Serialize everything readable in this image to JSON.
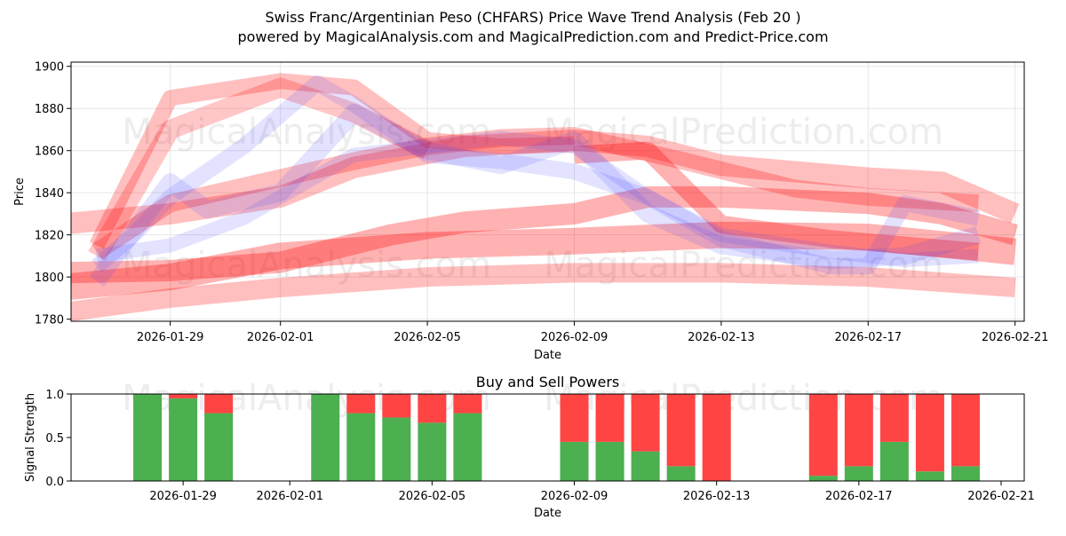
{
  "title_line1": "Swiss Franc/Argentinian Peso (CHFARS) Price Wave Trend Analysis (Feb 20 )",
  "title_line2": "powered by MagicalAnalysis.com and MagicalPrediction.com and Predict-Price.com",
  "watermarks": [
    "MagicalAnalysis.com",
    "MagicalPrediction.com"
  ],
  "colors": {
    "red": "#ff0000",
    "blue": "#4040ff",
    "buy": "#4caf50",
    "sell": "#ff4444"
  },
  "chart_data": [
    {
      "type": "line",
      "name": "price-wave-chart",
      "xlabel": "Date",
      "ylabel": "Price",
      "xlim": [
        "2026-01-26",
        "2026-02-21"
      ],
      "ylim": [
        1779,
        1902
      ],
      "x_ticks": [
        "2026-01-29",
        "2026-02-01",
        "2026-02-05",
        "2026-02-09",
        "2026-02-13",
        "2026-02-17",
        "2026-02-21"
      ],
      "y_ticks": [
        1780,
        1800,
        1820,
        1840,
        1860,
        1880,
        1900
      ],
      "grid": true,
      "series": [
        {
          "name": "red-wave-1",
          "color": "red",
          "width": 18,
          "alpha": 0.25,
          "x": [
            "2026-01-27",
            "2026-01-29",
            "2026-02-01",
            "2026-02-03",
            "2026-02-05",
            "2026-02-07",
            "2026-02-09"
          ],
          "y": [
            1815,
            1885,
            1893,
            1890,
            1865,
            1862,
            1863
          ]
        },
        {
          "name": "red-wave-2",
          "color": "red",
          "width": 22,
          "alpha": 0.22,
          "x": [
            "2026-01-27",
            "2026-01-29",
            "2026-02-01",
            "2026-02-03",
            "2026-02-05"
          ],
          "y": [
            1810,
            1870,
            1890,
            1878,
            1860
          ]
        },
        {
          "name": "red-wave-3",
          "color": "red",
          "width": 20,
          "alpha": 0.25,
          "x": [
            "2026-01-27",
            "2026-01-29",
            "2026-02-01",
            "2026-02-03",
            "2026-02-05",
            "2026-02-07",
            "2026-02-09",
            "2026-02-12",
            "2026-02-15",
            "2026-02-17",
            "2026-02-20"
          ],
          "y": [
            1812,
            1835,
            1847,
            1855,
            1862,
            1866,
            1867,
            1855,
            1842,
            1838,
            1835
          ]
        },
        {
          "name": "red-wave-4",
          "color": "red",
          "width": 24,
          "alpha": 0.25,
          "x": [
            "2026-01-26",
            "2026-01-29",
            "2026-02-01",
            "2026-02-03",
            "2026-02-06",
            "2026-02-09",
            "2026-02-11",
            "2026-02-13",
            "2026-02-17",
            "2026-02-19",
            "2026-02-21"
          ],
          "y": [
            1825,
            1830,
            1838,
            1852,
            1862,
            1865,
            1862,
            1853,
            1847,
            1845,
            1830
          ]
        },
        {
          "name": "red-wave-5",
          "color": "red",
          "width": 24,
          "alpha": 0.3,
          "x": [
            "2026-01-26",
            "2026-01-29",
            "2026-02-01",
            "2026-02-04",
            "2026-02-06",
            "2026-02-09",
            "2026-02-11",
            "2026-02-13",
            "2026-02-17",
            "2026-02-19",
            "2026-02-21"
          ],
          "y": [
            1802,
            1803,
            1807,
            1820,
            1826,
            1830,
            1838,
            1838,
            1835,
            1830,
            1820
          ]
        },
        {
          "name": "red-wave-6",
          "color": "red",
          "width": 30,
          "alpha": 0.3,
          "x": [
            "2026-01-26",
            "2026-01-29",
            "2026-02-01",
            "2026-02-05",
            "2026-02-09",
            "2026-02-13",
            "2026-02-17",
            "2026-02-21"
          ],
          "y": [
            1795,
            1800,
            1810,
            1815,
            1817,
            1820,
            1819,
            1812
          ]
        },
        {
          "name": "red-wave-7",
          "color": "red",
          "width": 22,
          "alpha": 0.25,
          "x": [
            "2026-01-26",
            "2026-01-29",
            "2026-02-01",
            "2026-02-05",
            "2026-02-09",
            "2026-02-13",
            "2026-02-17",
            "2026-02-21"
          ],
          "y": [
            1783,
            1790,
            1795,
            1800,
            1802,
            1802,
            1800,
            1795
          ]
        },
        {
          "name": "red-wave-8",
          "color": "red",
          "width": 20,
          "alpha": 0.3,
          "x": [
            "2026-02-09",
            "2026-02-11",
            "2026-02-13",
            "2026-02-16",
            "2026-02-18",
            "2026-02-20"
          ],
          "y": [
            1858,
            1860,
            1825,
            1818,
            1815,
            1812
          ]
        },
        {
          "name": "blue-wave-1",
          "color": "blue",
          "width": 18,
          "alpha": 0.15,
          "x": [
            "2026-01-27",
            "2026-01-28",
            "2026-01-29",
            "2026-01-31",
            "2026-02-02",
            "2026-02-03",
            "2026-02-05",
            "2026-02-07",
            "2026-02-09",
            "2026-02-11",
            "2026-02-13",
            "2026-02-16",
            "2026-02-17",
            "2026-02-18",
            "2026-02-20"
          ],
          "y": [
            1805,
            1820,
            1838,
            1862,
            1892,
            1882,
            1858,
            1855,
            1850,
            1838,
            1818,
            1805,
            1805,
            1835,
            1828
          ]
        },
        {
          "name": "blue-wave-2",
          "color": "blue",
          "width": 20,
          "alpha": 0.15,
          "x": [
            "2026-01-27",
            "2026-01-29",
            "2026-01-30",
            "2026-02-01",
            "2026-02-03",
            "2026-02-05",
            "2026-02-07",
            "2026-02-09",
            "2026-02-11",
            "2026-02-13",
            "2026-02-16",
            "2026-02-18",
            "2026-02-20"
          ],
          "y": [
            1798,
            1845,
            1832,
            1840,
            1878,
            1860,
            1853,
            1865,
            1830,
            1815,
            1808,
            1810,
            1820
          ]
        },
        {
          "name": "blue-wave-3",
          "color": "blue",
          "width": 16,
          "alpha": 0.15,
          "x": [
            "2026-01-27",
            "2026-01-29",
            "2026-01-31",
            "2026-02-02",
            "2026-02-03",
            "2026-02-05",
            "2026-02-07",
            "2026-02-09",
            "2026-02-11",
            "2026-02-13",
            "2026-02-16",
            "2026-02-18",
            "2026-02-20"
          ],
          "y": [
            1810,
            1815,
            1828,
            1848,
            1858,
            1862,
            1866,
            1862,
            1838,
            1820,
            1812,
            1808,
            1810
          ]
        }
      ]
    },
    {
      "type": "bar",
      "name": "buy-sell-powers",
      "title": "Buy and Sell Powers",
      "xlabel": "Date",
      "ylabel": "Signal Strength",
      "ylim": [
        0,
        1
      ],
      "y_ticks": [
        "0.0",
        "0.5",
        "1.0"
      ],
      "x_ticks": [
        "2026-01-29",
        "2026-02-01",
        "2026-02-05",
        "2026-02-09",
        "2026-02-13",
        "2026-02-17",
        "2026-02-21"
      ],
      "categories": [
        "2026-01-28",
        "2026-01-29",
        "2026-01-30",
        "2026-02-02",
        "2026-02-03",
        "2026-02-04",
        "2026-02-05",
        "2026-02-06",
        "2026-02-09",
        "2026-02-10",
        "2026-02-11",
        "2026-02-12",
        "2026-02-13",
        "2026-02-16",
        "2026-02-17",
        "2026-02-18",
        "2026-02-19",
        "2026-02-20"
      ],
      "buy": [
        1.0,
        0.95,
        0.78,
        1.0,
        0.78,
        0.73,
        0.67,
        0.78,
        0.45,
        0.45,
        0.34,
        0.17,
        0.0,
        0.06,
        0.17,
        0.45,
        0.11,
        0.17
      ],
      "sell": [
        0.0,
        0.05,
        0.22,
        0.0,
        0.22,
        0.27,
        0.33,
        0.22,
        0.55,
        0.55,
        0.66,
        0.83,
        1.0,
        0.94,
        0.83,
        0.55,
        0.89,
        0.83
      ]
    }
  ]
}
